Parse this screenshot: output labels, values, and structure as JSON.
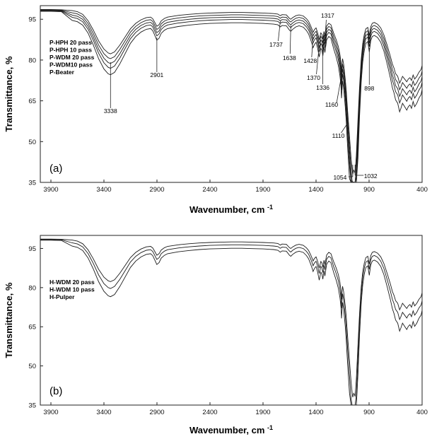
{
  "chart_data": [
    {
      "type": "line",
      "panel_label": "(a)",
      "xlabel": "Wavenumber, cm",
      "xlabel_sup": "-1",
      "ylabel": "Transmittance, %",
      "xlim": [
        4000,
        400
      ],
      "ylim": [
        35,
        100
      ],
      "xticks": [
        3900,
        3400,
        2900,
        2400,
        1900,
        1400,
        900,
        400
      ],
      "yticks": [
        35,
        50,
        65,
        80,
        95
      ],
      "legend": [
        "P-HPH 20 pass",
        "P-HPH 10 pass",
        "P-WDM 20 pass",
        "P-WDM10 pass",
        "P-Beater"
      ],
      "legend_position": "left",
      "annotations": [
        {
          "text": "3338",
          "x": 3338
        },
        {
          "text": "2901",
          "x": 2901
        },
        {
          "text": "1737",
          "x": 1737
        },
        {
          "text": "1638",
          "x": 1638
        },
        {
          "text": "1428",
          "x": 1428
        },
        {
          "text": "1370",
          "x": 1370
        },
        {
          "text": "1336",
          "x": 1336
        },
        {
          "text": "1317",
          "x": 1317
        },
        {
          "text": "1160",
          "x": 1160
        },
        {
          "text": "1110",
          "x": 1110
        },
        {
          "text": "1054",
          "x": 1054
        },
        {
          "text": "1032",
          "x": 1032
        },
        {
          "text": "898",
          "x": 898
        }
      ],
      "series": [
        {
          "offset": 0.0,
          "spread": 0.0
        },
        {
          "offset": -0.8,
          "spread": 0.06
        },
        {
          "offset": -1.6,
          "spread": 0.12
        },
        {
          "offset": -2.4,
          "spread": 0.18
        },
        {
          "offset": -3.5,
          "spread": 0.26
        }
      ]
    },
    {
      "type": "line",
      "panel_label": "(b)",
      "xlabel": "Wavenumber, cm",
      "xlabel_sup": "-1",
      "ylabel": "Transmittance, %",
      "xlim": [
        4000,
        400
      ],
      "ylim": [
        35,
        100
      ],
      "xticks": [
        3900,
        3400,
        2900,
        2400,
        1900,
        1400,
        900,
        400
      ],
      "yticks": [
        35,
        50,
        65,
        80,
        95
      ],
      "legend": [
        "H-WDM 20 pass",
        "H-WDM 10 pass",
        "H-Pulper"
      ],
      "legend_position": "left",
      "annotations": [],
      "series": [
        {
          "offset": 0.0,
          "spread": 0.0
        },
        {
          "offset": -1.0,
          "spread": 0.1
        },
        {
          "offset": -2.2,
          "spread": 0.22
        }
      ]
    }
  ],
  "base_spectrum": [
    [
      4000,
      98.6
    ],
    [
      3900,
      98.6
    ],
    [
      3800,
      98.5
    ],
    [
      3700,
      98.2
    ],
    [
      3650,
      97.8
    ],
    [
      3600,
      96.8
    ],
    [
      3550,
      94.5
    ],
    [
      3500,
      91.0
    ],
    [
      3450,
      87.0
    ],
    [
      3400,
      84.0
    ],
    [
      3360,
      82.6
    ],
    [
      3338,
      82.3
    ],
    [
      3300,
      83.0
    ],
    [
      3250,
      85.5
    ],
    [
      3200,
      88.5
    ],
    [
      3150,
      91.5
    ],
    [
      3100,
      93.5
    ],
    [
      3050,
      94.8
    ],
    [
      3000,
      95.6
    ],
    [
      2960,
      95.8
    ],
    [
      2940,
      95.2
    ],
    [
      2920,
      93.8
    ],
    [
      2901,
      92.4
    ],
    [
      2880,
      93.0
    ],
    [
      2860,
      94.4
    ],
    [
      2830,
      95.3
    ],
    [
      2800,
      95.8
    ],
    [
      2700,
      96.4
    ],
    [
      2600,
      96.8
    ],
    [
      2500,
      97.1
    ],
    [
      2400,
      97.3
    ],
    [
      2300,
      97.4
    ],
    [
      2200,
      97.5
    ],
    [
      2100,
      97.5
    ],
    [
      2000,
      97.4
    ],
    [
      1900,
      97.3
    ],
    [
      1800,
      97.1
    ],
    [
      1760,
      96.9
    ],
    [
      1737,
      96.3
    ],
    [
      1720,
      96.7
    ],
    [
      1680,
      96.6
    ],
    [
      1650,
      95.3
    ],
    [
      1638,
      95.0
    ],
    [
      1620,
      95.6
    ],
    [
      1590,
      96.3
    ],
    [
      1560,
      96.6
    ],
    [
      1520,
      96.2
    ],
    [
      1490,
      95.2
    ],
    [
      1470,
      94.2
    ],
    [
      1450,
      92.5
    ],
    [
      1435,
      91.0
    ],
    [
      1428,
      90.2
    ],
    [
      1415,
      91.2
    ],
    [
      1400,
      91.8
    ],
    [
      1385,
      90.0
    ],
    [
      1370,
      87.5
    ],
    [
      1355,
      90.0
    ],
    [
      1345,
      89.5
    ],
    [
      1336,
      87.8
    ],
    [
      1325,
      90.5
    ],
    [
      1317,
      88.8
    ],
    [
      1300,
      92.5
    ],
    [
      1280,
      93.5
    ],
    [
      1260,
      93.0
    ],
    [
      1235,
      90.0
    ],
    [
      1210,
      87.5
    ],
    [
      1190,
      85.0
    ],
    [
      1175,
      82.0
    ],
    [
      1165,
      79.0
    ],
    [
      1160,
      75.5
    ],
    [
      1150,
      80.5
    ],
    [
      1140,
      78.5
    ],
    [
      1125,
      73.0
    ],
    [
      1115,
      68.5
    ],
    [
      1110,
      65.5
    ],
    [
      1100,
      60.0
    ],
    [
      1085,
      52.0
    ],
    [
      1070,
      44.0
    ],
    [
      1060,
      40.0
    ],
    [
      1054,
      38.0
    ],
    [
      1045,
      39.5
    ],
    [
      1038,
      39.0
    ],
    [
      1032,
      38.3
    ],
    [
      1020,
      45.0
    ],
    [
      1005,
      58.0
    ],
    [
      990,
      70.0
    ],
    [
      975,
      80.0
    ],
    [
      960,
      86.0
    ],
    [
      945,
      89.5
    ],
    [
      930,
      91.5
    ],
    [
      912,
      92.0
    ],
    [
      898,
      89.0
    ],
    [
      885,
      92.2
    ],
    [
      870,
      93.5
    ],
    [
      850,
      93.8
    ],
    [
      820,
      93.2
    ],
    [
      790,
      91.8
    ],
    [
      760,
      89.2
    ],
    [
      730,
      85.5
    ],
    [
      700,
      81.5
    ],
    [
      680,
      78.5
    ],
    [
      665,
      77.0
    ],
    [
      650,
      75.0
    ],
    [
      630,
      74.0
    ],
    [
      612,
      71.5
    ],
    [
      600,
      72.5
    ],
    [
      585,
      74.0
    ],
    [
      565,
      73.0
    ],
    [
      545,
      72.0
    ],
    [
      530,
      73.0
    ],
    [
      515,
      73.5
    ],
    [
      500,
      72.5
    ],
    [
      485,
      74.5
    ],
    [
      470,
      73.0
    ],
    [
      450,
      74.0
    ],
    [
      430,
      75.5
    ],
    [
      410,
      76.5
    ],
    [
      400,
      78.0
    ]
  ]
}
